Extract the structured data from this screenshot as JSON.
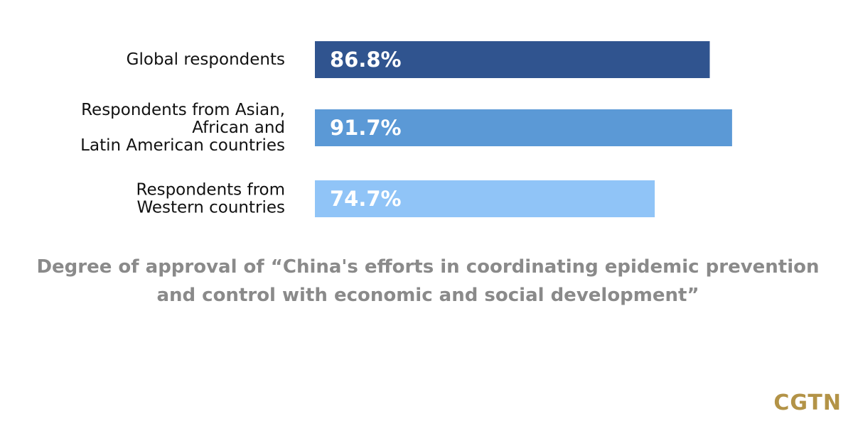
{
  "chart_data": {
    "type": "bar",
    "orientation": "horizontal",
    "categories": [
      [
        "Global respondents"
      ],
      [
        "Respondents from Asian,",
        "African and",
        "Latin American countries"
      ],
      [
        "Respondents from",
        "Western countries"
      ]
    ],
    "values": [
      86.8,
      91.7,
      74.7
    ],
    "value_labels": [
      "86.8%",
      "91.7%",
      "74.7%"
    ],
    "bar_colors": [
      "#30548f",
      "#5b99d6",
      "#90c4f7"
    ],
    "value_unit": "%",
    "xlim": [
      0,
      100
    ],
    "grid": false,
    "legend": false,
    "title": "",
    "xlabel": "",
    "ylabel": ""
  },
  "caption": {
    "line1": "Degree of approval of “China's efforts in coordinating epidemic prevention",
    "line2": "and control with economic and social development”"
  },
  "brand": {
    "logo_text": "CGTN",
    "logo_color": "#b39347"
  },
  "colors": {
    "background": "#ffffff",
    "caption_text": "#8a8a8a",
    "label_text": "#111111"
  }
}
